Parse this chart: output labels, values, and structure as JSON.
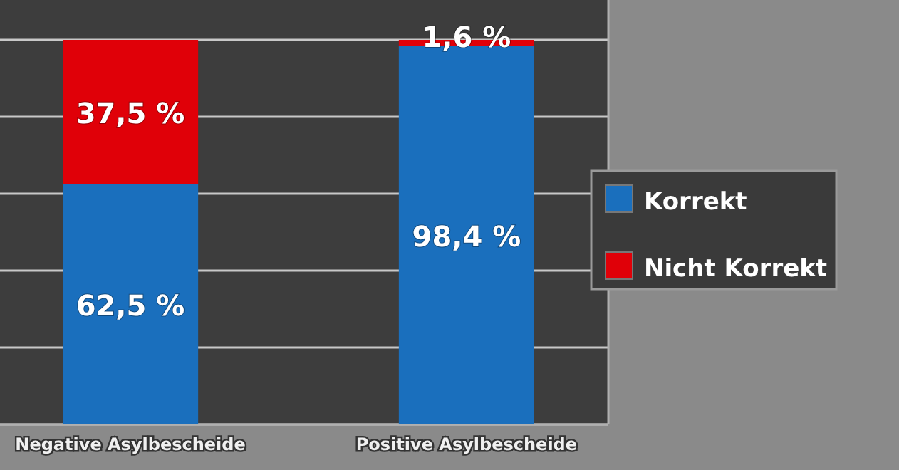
{
  "chart_data": {
    "type": "bar",
    "stacked": true,
    "categories": [
      "Negative Asylbescheide",
      "Positive Asylbescheide"
    ],
    "series": [
      {
        "name": "Korrekt",
        "color": "#1a6fbd",
        "values": [
          62.5,
          98.4
        ],
        "value_labels": [
          "62,5 %",
          "98,4 %"
        ]
      },
      {
        "name": "Nicht Korrekt",
        "color": "#e00008",
        "values": [
          37.5,
          1.6
        ],
        "value_labels": [
          "37,5 %",
          "1,6 %"
        ]
      }
    ],
    "ylim": [
      0,
      100
    ],
    "yticks": [
      {
        "value": 0,
        "label": null
      },
      {
        "value": 20,
        "label": null
      },
      {
        "value": 40,
        "label": null
      },
      {
        "value": 60,
        "label": null
      },
      {
        "value": 80,
        "label": null
      },
      {
        "value": 100,
        "label": null
      }
    ],
    "grid": "y",
    "tick_labels": "x",
    "legend": "right"
  }
}
